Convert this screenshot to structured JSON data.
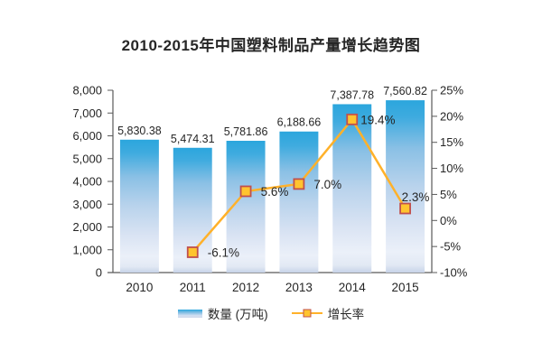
{
  "chart_data": {
    "type": "combo-bar-line",
    "title": "2010-2015年中国塑料制品产量增长趋势图",
    "categories": [
      "2010",
      "2011",
      "2012",
      "2013",
      "2014",
      "2015"
    ],
    "series": [
      {
        "name": "数量 (万吨)",
        "type": "bar",
        "axis": "left",
        "values": [
          5830.38,
          5474.31,
          5781.86,
          6188.66,
          7387.78,
          7560.82
        ],
        "labels": [
          "5,830.38",
          "5,474.31",
          "5,781.86",
          "6,188.66",
          "7,387.78",
          "7,560.82"
        ],
        "color_top": "#2ba6dd",
        "color_bottom": "#c7d3e8"
      },
      {
        "name": "增长率",
        "type": "line",
        "axis": "right",
        "values": [
          null,
          -6.1,
          5.6,
          7.0,
          19.4,
          2.3
        ],
        "labels": [
          null,
          "-6.1%",
          "5.6%",
          "7.0%",
          "19.4%",
          "2.3%"
        ],
        "line_color": "#ffb12a",
        "marker_fill": "#ffc42f",
        "marker_stroke": "#c0504d"
      }
    ],
    "left_axis": {
      "min": 0,
      "max": 8000,
      "step": 1000,
      "tick_labels": [
        "0",
        "1,000",
        "2,000",
        "3,000",
        "4,000",
        "5,000",
        "6,000",
        "7,000",
        "8,000"
      ]
    },
    "right_axis": {
      "min": -10,
      "max": 25,
      "step": 5,
      "tick_labels": [
        "-10%",
        "-5%",
        "0%",
        "5%",
        "10%",
        "15%",
        "20%",
        "25%"
      ]
    },
    "grid": false,
    "legend_position": "bottom",
    "axis_color": "#595959",
    "text_color": "#262626"
  }
}
